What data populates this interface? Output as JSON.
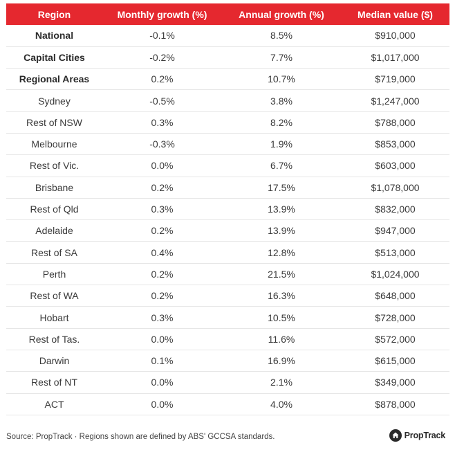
{
  "table": {
    "headers": [
      "Region",
      "Monthly growth (%)",
      "Annual growth (%)",
      "Median value ($)"
    ],
    "rows": [
      {
        "region": "National",
        "monthly": "-0.1%",
        "annual": "8.5%",
        "median": "$910,000",
        "bold": true
      },
      {
        "region": "Capital Cities",
        "monthly": "-0.2%",
        "annual": "7.7%",
        "median": "$1,017,000",
        "bold": true
      },
      {
        "region": "Regional Areas",
        "monthly": "0.2%",
        "annual": "10.7%",
        "median": "$719,000",
        "bold": true
      },
      {
        "region": "Sydney",
        "monthly": "-0.5%",
        "annual": "3.8%",
        "median": "$1,247,000",
        "bold": false
      },
      {
        "region": "Rest of NSW",
        "monthly": "0.3%",
        "annual": "8.2%",
        "median": "$788,000",
        "bold": false
      },
      {
        "region": "Melbourne",
        "monthly": "-0.3%",
        "annual": "1.9%",
        "median": "$853,000",
        "bold": false
      },
      {
        "region": "Rest of Vic.",
        "monthly": "0.0%",
        "annual": "6.7%",
        "median": "$603,000",
        "bold": false
      },
      {
        "region": "Brisbane",
        "monthly": "0.2%",
        "annual": "17.5%",
        "median": "$1,078,000",
        "bold": false
      },
      {
        "region": "Rest of Qld",
        "monthly": "0.3%",
        "annual": "13.9%",
        "median": "$832,000",
        "bold": false
      },
      {
        "region": "Adelaide",
        "monthly": "0.2%",
        "annual": "13.9%",
        "median": "$947,000",
        "bold": false
      },
      {
        "region": "Rest of SA",
        "monthly": "0.4%",
        "annual": "12.8%",
        "median": "$513,000",
        "bold": false
      },
      {
        "region": "Perth",
        "monthly": "0.2%",
        "annual": "21.5%",
        "median": "$1,024,000",
        "bold": false
      },
      {
        "region": "Rest of WA",
        "monthly": "0.2%",
        "annual": "16.3%",
        "median": "$648,000",
        "bold": false
      },
      {
        "region": "Hobart",
        "monthly": "0.3%",
        "annual": "10.5%",
        "median": "$728,000",
        "bold": false
      },
      {
        "region": "Rest of Tas.",
        "monthly": "0.0%",
        "annual": "11.6%",
        "median": "$572,000",
        "bold": false
      },
      {
        "region": "Darwin",
        "monthly": "0.1%",
        "annual": "16.9%",
        "median": "$615,000",
        "bold": false
      },
      {
        "region": "Rest of NT",
        "monthly": "0.0%",
        "annual": "2.1%",
        "median": "$349,000",
        "bold": false
      },
      {
        "region": "ACT",
        "monthly": "0.0%",
        "annual": "4.0%",
        "median": "$878,000",
        "bold": false
      }
    ]
  },
  "footer": {
    "source": "Source: PropTrack · Regions shown are defined by ABS' GCCSA standards.",
    "logo_text": "PropTrack",
    "logo_icon": "house-icon"
  },
  "colors": {
    "header_bg": "#e5282f",
    "header_text": "#ffffff"
  }
}
